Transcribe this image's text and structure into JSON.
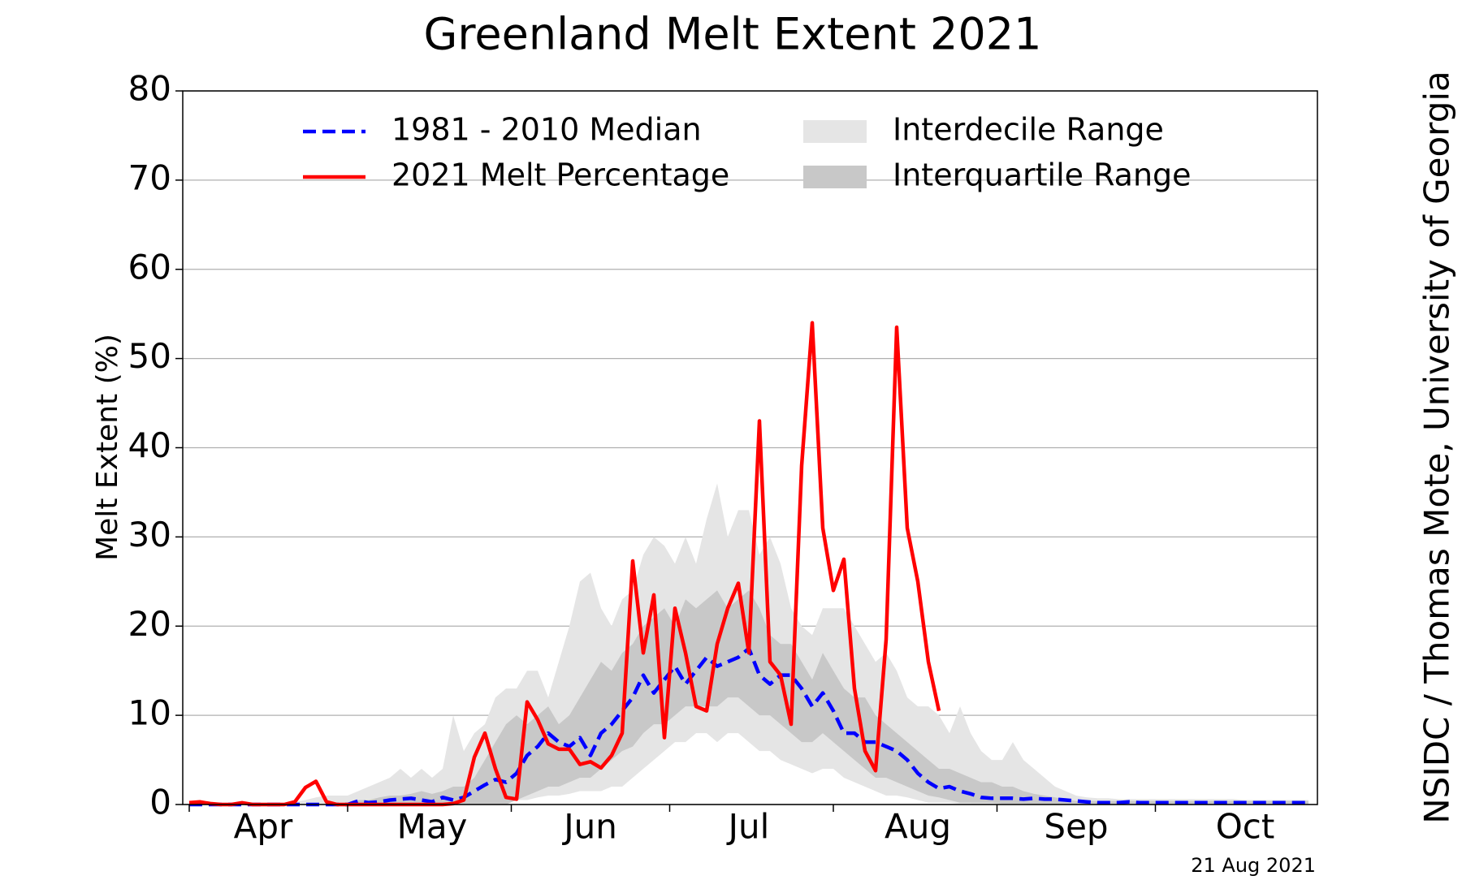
{
  "chart_data": {
    "type": "line",
    "title": "Greenland Melt Extent 2021",
    "ylabel": "Melt Extent (%)",
    "source": "NSIDC / Thomas Mote, University of Georgia",
    "date": "21 Aug 2021",
    "legend": "upper center",
    "grid": true,
    "ylim": [
      0,
      80
    ],
    "yticks": [
      0,
      10,
      20,
      30,
      40,
      50,
      60,
      70,
      80
    ],
    "categories": [
      null,
      null,
      null,
      null,
      null,
      null,
      null,
      "Apr",
      null,
      null,
      null,
      null,
      null,
      null,
      null,
      null,
      null,
      null,
      null,
      null,
      null,
      null,
      null,
      "May",
      null,
      null,
      null,
      null,
      null,
      null,
      null,
      null,
      null,
      null,
      null,
      null,
      null,
      null,
      "Jun",
      null,
      null,
      null,
      null,
      null,
      null,
      null,
      null,
      null,
      null,
      null,
      null,
      null,
      null,
      "Jul",
      null,
      null,
      null,
      null,
      null,
      null,
      null,
      null,
      null,
      null,
      null,
      null,
      null,
      null,
      null,
      "Aug",
      null,
      null,
      null,
      null,
      null,
      null,
      null,
      null,
      null,
      null,
      null,
      null,
      null,
      null,
      "Sep",
      null,
      null,
      null,
      null,
      null,
      null,
      null,
      null,
      null,
      null,
      null,
      null,
      null,
      null,
      null,
      "Oct",
      null,
      null,
      null,
      null,
      null,
      null
    ],
    "bands": [
      {
        "name": "Interdecile Range",
        "color": "#e5e5e5",
        "low": [
          0,
          0,
          0,
          0,
          0,
          0,
          0,
          0,
          0,
          0,
          0,
          0,
          0,
          0,
          0,
          0,
          0,
          0,
          0,
          0,
          0,
          0,
          0,
          0,
          0,
          0,
          0,
          0,
          0,
          0,
          0.3,
          0.5,
          0.5,
          0.8,
          1,
          1,
          1.2,
          1.5,
          1.5,
          1.5,
          2,
          2,
          3,
          4,
          5,
          6,
          7,
          7,
          8,
          8,
          7,
          8,
          8,
          7,
          6,
          6,
          5,
          4.5,
          4,
          3.5,
          4,
          4,
          3,
          2.5,
          2,
          1.5,
          1,
          1,
          0.8,
          0.5,
          0.2,
          0.2,
          0.2,
          0.1,
          0.1,
          0,
          0,
          0,
          0,
          0,
          0,
          0,
          0,
          0,
          0,
          0,
          0,
          0,
          0,
          0,
          0,
          0,
          0,
          0,
          0,
          0,
          0,
          0,
          0,
          0,
          0,
          0,
          0,
          0,
          0,
          0,
          0
        ],
        "high": [
          0,
          0,
          0,
          0,
          0,
          0,
          0,
          0,
          0,
          0,
          0.3,
          0.5,
          0.8,
          1,
          1,
          1,
          1.5,
          2,
          2.5,
          3,
          4,
          3,
          4,
          3,
          4,
          10,
          6,
          8,
          9,
          12,
          13,
          13,
          15,
          15,
          12,
          16,
          20,
          25,
          26,
          22,
          20,
          23,
          24,
          28,
          30,
          29,
          27,
          30,
          27,
          32,
          36,
          30,
          33,
          33,
          28,
          30,
          27,
          22,
          20,
          19,
          22,
          22,
          22,
          20,
          18,
          16,
          17,
          15,
          12,
          11,
          11,
          10,
          8,
          11,
          8,
          6,
          5,
          5,
          7,
          5,
          4,
          3,
          2,
          1.5,
          1,
          0.8,
          0.7,
          0.7,
          0.6,
          0.6,
          0.6,
          0.6,
          0.6,
          0.6,
          0.6,
          0.6,
          0.6,
          0.6,
          0.6,
          0.6,
          0.5,
          0.5,
          0.5,
          0.5,
          0.5,
          0.5,
          0.5
        ]
      },
      {
        "name": "Interquartile Range",
        "color": "#c8c8c8",
        "low": [
          0,
          0,
          0,
          0,
          0,
          0,
          0,
          0,
          0,
          0,
          0,
          0,
          0,
          0,
          0,
          0,
          0,
          0,
          0,
          0,
          0,
          0,
          0,
          0,
          0,
          0,
          0,
          0,
          0,
          0,
          0,
          0.5,
          1,
          1.5,
          2,
          2,
          2.5,
          3,
          3,
          4,
          5,
          6,
          6.5,
          8,
          9,
          9,
          10,
          11,
          11,
          11,
          11,
          12,
          12,
          11,
          10,
          10,
          9,
          8,
          7,
          7,
          8,
          7,
          6,
          5,
          4,
          3,
          3,
          2.5,
          2,
          1.5,
          1,
          0.8,
          0.5,
          0.2,
          0.2,
          0.2,
          0.2,
          0.1,
          0.1,
          0.1,
          0,
          0,
          0,
          0,
          0,
          0,
          0,
          0,
          0,
          0,
          0,
          0,
          0,
          0,
          0,
          0,
          0,
          0,
          0,
          0,
          0,
          0,
          0,
          0,
          0,
          0,
          0
        ],
        "high": [
          0,
          0,
          0,
          0,
          0,
          0,
          0,
          0,
          0,
          0,
          0,
          0,
          0,
          0,
          0,
          0,
          0.5,
          0.5,
          0.8,
          1,
          1,
          1.2,
          1.5,
          1.2,
          1.5,
          2,
          2,
          3,
          5,
          7,
          9,
          10,
          9,
          10,
          11,
          9,
          10,
          12,
          14,
          16,
          15,
          17,
          18,
          20,
          21,
          22,
          20,
          23,
          22,
          23,
          24,
          22,
          23,
          24,
          22,
          19,
          18,
          18,
          16,
          14,
          17,
          15,
          13,
          12,
          12,
          10,
          9,
          8,
          7,
          6,
          5,
          4,
          4,
          3.5,
          3,
          2.5,
          2.5,
          2,
          2,
          1.5,
          1.2,
          1,
          0.8,
          0.6,
          0.4,
          0.4,
          0.4,
          0.4,
          0.4,
          0.4,
          0.4,
          0.4,
          0.4,
          0.4,
          0.4,
          0.4,
          0.4,
          0.4,
          0.4,
          0.4,
          0.4,
          0.4,
          0.4,
          0.4,
          0.4,
          0.4,
          0.4
        ]
      }
    ],
    "series": [
      {
        "name": "1981 - 2010 Median",
        "color": "#0000ff",
        "style": "dashed",
        "values": [
          0,
          0,
          0,
          0,
          0,
          0,
          0,
          0,
          0,
          0,
          0,
          0,
          0,
          0,
          0,
          0,
          0.4,
          0.2,
          0.3,
          0.5,
          0.6,
          0.7,
          0.5,
          0.3,
          0.8,
          0.5,
          0.8,
          1.5,
          2.2,
          2.8,
          2.5,
          3.5,
          5.5,
          6.5,
          8,
          7,
          6.5,
          7.5,
          5.5,
          8,
          9,
          10.5,
          12,
          14.5,
          12.5,
          14,
          15.5,
          13.5,
          15,
          16.5,
          15.5,
          16,
          16.5,
          17.5,
          14.5,
          13.5,
          14.5,
          14.5,
          13,
          11,
          12.5,
          10.5,
          8,
          8,
          7,
          7,
          6.5,
          6,
          5,
          3.5,
          2.5,
          1.8,
          2,
          1.5,
          1.2,
          0.8,
          0.7,
          0.7,
          0.7,
          0.6,
          0.7,
          0.6,
          0.6,
          0.5,
          0.4,
          0.3,
          0.2,
          0.2,
          0.2,
          0.3,
          0.2,
          0.2,
          0.2,
          0.2,
          0.2,
          0.2,
          0.2,
          0.2,
          0.2,
          0.2,
          0.2,
          0.2,
          0.2,
          0.2,
          0.2,
          0.2,
          0.2
        ]
      },
      {
        "name": "2021 Melt Percentage",
        "color": "#ff0000",
        "style": "solid",
        "values": [
          0.2,
          0.3,
          0.1,
          0,
          0,
          0.2,
          0,
          0,
          0,
          0,
          0.3,
          1.9,
          2.6,
          0.3,
          0,
          0,
          0,
          0,
          0,
          0,
          0,
          0,
          0,
          0,
          0,
          0.1,
          0.5,
          5.3,
          8,
          4,
          0.8,
          0.6,
          11.5,
          9.5,
          6.8,
          6.2,
          6.2,
          4.5,
          4.8,
          4.1,
          5.5,
          8,
          27.3,
          17,
          23.5,
          7.5,
          22,
          17,
          11,
          10.5,
          18,
          22,
          24.8,
          17,
          43,
          16,
          14.5,
          9,
          38,
          54,
          31,
          24,
          27.5,
          13,
          6,
          3.8,
          18.5,
          53.5,
          31,
          25,
          16,
          10.5,
          null,
          null,
          null,
          null,
          null,
          null,
          null,
          null,
          null,
          null,
          null,
          null,
          null,
          null,
          null,
          null,
          null,
          null,
          null,
          null,
          null,
          null,
          null,
          null,
          null,
          null,
          null,
          null,
          null,
          null,
          null,
          null,
          null,
          null,
          null
        ]
      }
    ]
  }
}
